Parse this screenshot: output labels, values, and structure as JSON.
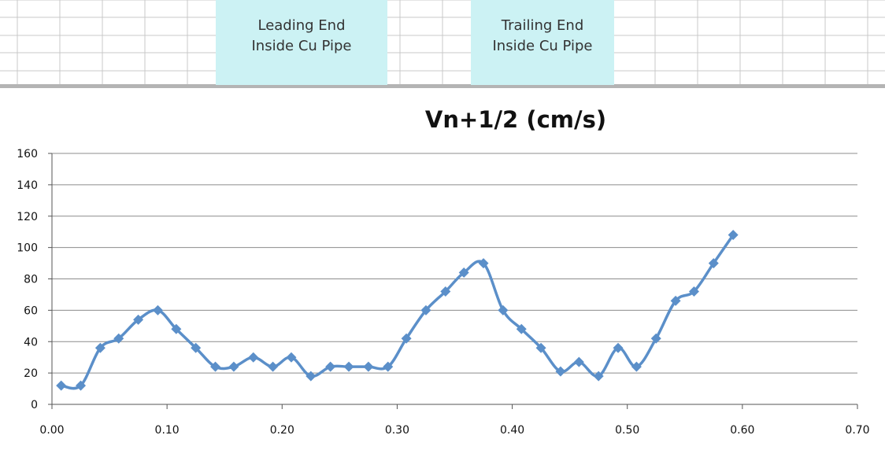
{
  "notes": {
    "leading": {
      "line1": "Leading End",
      "line2": "Inside Cu Pipe"
    },
    "trailing": {
      "line1": "Trailing End",
      "line2": "Inside Cu Pipe"
    }
  },
  "colors": {
    "series": "#5b8fc9",
    "note_fill": "#ccf2f4",
    "gridline": "#8c8c8c",
    "cell_border": "#c8c8c8"
  },
  "chart_data": {
    "type": "scatter",
    "title": "Vn+1/2 (cm/s)",
    "xlabel": "",
    "ylabel": "",
    "xlim": [
      0,
      0.7
    ],
    "ylim": [
      0,
      160
    ],
    "x_ticks": [
      "0.00",
      "0.10",
      "0.20",
      "0.30",
      "0.40",
      "0.50",
      "0.60",
      "0.70"
    ],
    "y_ticks": [
      "0",
      "20",
      "40",
      "60",
      "80",
      "100",
      "120",
      "140",
      "160"
    ],
    "grid": "horizontal",
    "legend": "none",
    "line_style": "smoothed with diamond markers",
    "series": [
      {
        "x": [
          0.008,
          0.025,
          0.042,
          0.058,
          0.075,
          0.092,
          0.108,
          0.125,
          0.142,
          0.158,
          0.175,
          0.192,
          0.208,
          0.225,
          0.242,
          0.258,
          0.275,
          0.292,
          0.308,
          0.325,
          0.342,
          0.358,
          0.375,
          0.392,
          0.408,
          0.425,
          0.442,
          0.458,
          0.475,
          0.492,
          0.508,
          0.525,
          0.542,
          0.558,
          0.575,
          0.592
        ],
        "y": [
          12,
          12,
          36,
          42,
          54,
          60,
          48,
          36,
          24,
          24,
          30,
          24,
          30,
          18,
          24,
          24,
          24,
          24,
          42,
          60,
          72,
          84,
          90,
          60,
          48,
          36,
          21,
          27,
          18,
          36,
          24,
          42,
          66,
          72,
          90,
          108
        ]
      }
    ]
  }
}
